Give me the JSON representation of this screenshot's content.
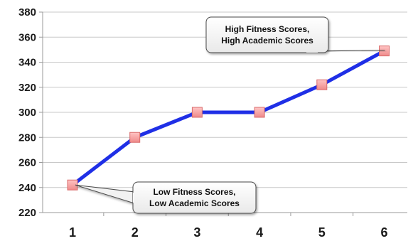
{
  "chart_data": {
    "type": "line",
    "title": "",
    "xlabel": "",
    "ylabel": "",
    "categories": [
      "1",
      "2",
      "3",
      "4",
      "5",
      "6"
    ],
    "x": [
      1,
      2,
      3,
      4,
      5,
      6
    ],
    "y": [
      242,
      280,
      300,
      300,
      322,
      349
    ],
    "ylim": [
      220,
      380
    ],
    "yticks": [
      220,
      240,
      260,
      280,
      300,
      320,
      340,
      360,
      380
    ],
    "grid": true,
    "legend": "none",
    "line_color": "#1f2fe6",
    "marker_color": "#f49a9a",
    "marker_shape": "square",
    "annotations": [
      {
        "point_index": 5,
        "lines": [
          "High Fitness Scores,",
          "High Academic Scores"
        ]
      },
      {
        "point_index": 0,
        "lines": [
          "Low Fitness Scores,",
          "Low Academic Scores"
        ]
      }
    ]
  }
}
